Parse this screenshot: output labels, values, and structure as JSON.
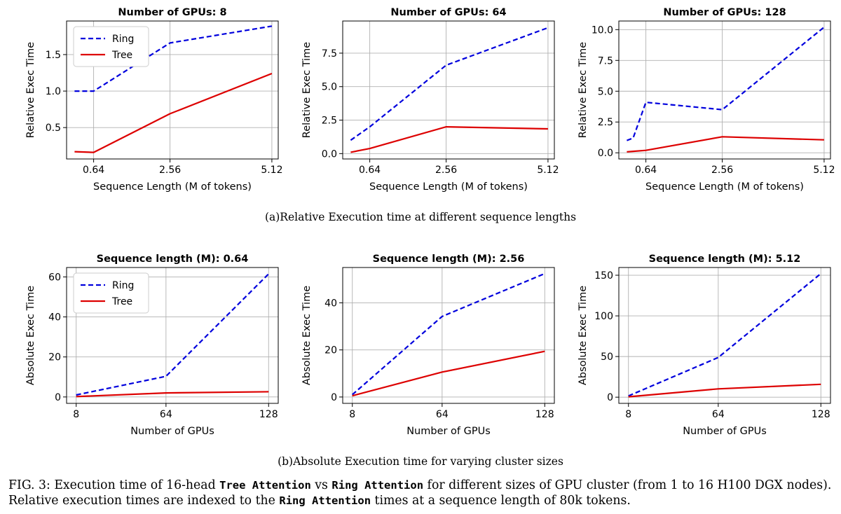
{
  "chart_data": [
    {
      "type": "line",
      "title": "Number of GPUs: 8",
      "xlabel": "Sequence Length (M of tokens)",
      "ylabel": "Relative Exec Time",
      "x_tick_labels": [
        "0.64",
        "2.56",
        "5.12"
      ],
      "y_tick_labels": [
        "0.5",
        "1.0",
        "1.5"
      ],
      "xlim": [
        -0.04,
        5.28
      ],
      "ylim": [
        0.07,
        1.96
      ],
      "grid": true,
      "legend": "upper-left",
      "series": [
        {
          "name": "Ring",
          "color": "#0000dd",
          "style": "dashed",
          "x": [
            0.16,
            0.64,
            2.56,
            5.12
          ],
          "y": [
            1.0,
            1.0,
            1.66,
            1.89
          ]
        },
        {
          "name": "Tree",
          "color": "#dd0000",
          "style": "solid",
          "x": [
            0.16,
            0.64,
            2.56,
            5.12
          ],
          "y": [
            0.17,
            0.16,
            0.69,
            1.24
          ]
        }
      ]
    },
    {
      "type": "line",
      "title": "Number of GPUs: 64",
      "xlabel": "Sequence Length (M of tokens)",
      "ylabel": "Relative Exec Time",
      "x_tick_labels": [
        "0.64",
        "2.56",
        "5.12"
      ],
      "y_tick_labels": [
        "0.0",
        "2.5",
        "5.0",
        "7.5"
      ],
      "xlim": [
        -0.04,
        5.28
      ],
      "ylim": [
        -0.4,
        9.9
      ],
      "grid": true,
      "series": [
        {
          "name": "Ring",
          "color": "#0000dd",
          "style": "dashed",
          "x": [
            0.16,
            0.64,
            2.56,
            5.12
          ],
          "y": [
            1.0,
            2.0,
            6.6,
            9.4
          ]
        },
        {
          "name": "Tree",
          "color": "#dd0000",
          "style": "solid",
          "x": [
            0.16,
            0.64,
            2.56,
            5.12
          ],
          "y": [
            0.1,
            0.38,
            2.0,
            1.85
          ]
        }
      ]
    },
    {
      "type": "line",
      "title": "Number of GPUs: 128",
      "xlabel": "Sequence Length (M of tokens)",
      "ylabel": "Relative Exec Time",
      "x_tick_labels": [
        "0.64",
        "2.56",
        "5.12"
      ],
      "y_tick_labels": [
        "0.0",
        "2.5",
        "5.0",
        "7.5",
        "10.0"
      ],
      "xlim": [
        -0.04,
        5.28
      ],
      "ylim": [
        -0.5,
        10.7
      ],
      "grid": true,
      "series": [
        {
          "name": "Ring",
          "color": "#0000dd",
          "style": "dashed",
          "x": [
            0.16,
            0.32,
            0.64,
            2.56,
            5.12
          ],
          "y": [
            1.0,
            1.2,
            4.1,
            3.5,
            10.2
          ]
        },
        {
          "name": "Tree",
          "color": "#dd0000",
          "style": "solid",
          "x": [
            0.16,
            0.32,
            0.64,
            2.56,
            5.12
          ],
          "y": [
            0.08,
            0.12,
            0.2,
            1.3,
            1.05
          ]
        }
      ]
    },
    {
      "type": "line",
      "title": "Sequence length (M): 0.64",
      "xlabel": "Number of GPUs",
      "ylabel": "Absolute Exec Time",
      "x_tick_labels": [
        "8",
        "64",
        "128"
      ],
      "y_tick_labels": [
        "0",
        "20",
        "40",
        "60"
      ],
      "xlim": [
        2,
        134
      ],
      "ylim": [
        -3.2,
        64.7
      ],
      "grid": true,
      "legend": "upper-left",
      "series": [
        {
          "name": "Ring",
          "color": "#0000dd",
          "style": "dashed",
          "x": [
            8,
            64,
            128
          ],
          "y": [
            1.0,
            10.3,
            61.5
          ]
        },
        {
          "name": "Tree",
          "color": "#dd0000",
          "style": "solid",
          "x": [
            8,
            64,
            128
          ],
          "y": [
            0.2,
            2.0,
            2.6
          ]
        }
      ]
    },
    {
      "type": "line",
      "title": "Sequence length (M): 2.56",
      "xlabel": "Number of GPUs",
      "ylabel": "Absolute Exec Time",
      "x_tick_labels": [
        "8",
        "64",
        "128"
      ],
      "y_tick_labels": [
        "0",
        "20",
        "40"
      ],
      "xlim": [
        2,
        134
      ],
      "ylim": [
        -2.7,
        55.0
      ],
      "grid": true,
      "series": [
        {
          "name": "Ring",
          "color": "#0000dd",
          "style": "dashed",
          "x": [
            8,
            64,
            128
          ],
          "y": [
            1.0,
            34.2,
            52.4
          ]
        },
        {
          "name": "Tree",
          "color": "#dd0000",
          "style": "solid",
          "x": [
            8,
            64,
            128
          ],
          "y": [
            0.5,
            10.6,
            19.4
          ]
        }
      ]
    },
    {
      "type": "line",
      "title": "Sequence length (M): 5.12",
      "xlabel": "Number of GPUs",
      "ylabel": "Absolute Exec Time",
      "x_tick_labels": [
        "8",
        "64",
        "128"
      ],
      "y_tick_labels": [
        "0",
        "50",
        "100",
        "150"
      ],
      "xlim": [
        2,
        134
      ],
      "ylim": [
        -7.6,
        159.5
      ],
      "grid": true,
      "series": [
        {
          "name": "Ring",
          "color": "#0000dd",
          "style": "dashed",
          "x": [
            8,
            64,
            128
          ],
          "y": [
            1.5,
            48.8,
            152.0
          ]
        },
        {
          "name": "Tree",
          "color": "#dd0000",
          "style": "solid",
          "x": [
            8,
            64,
            128
          ],
          "y": [
            0.5,
            10.2,
            15.8
          ]
        }
      ]
    }
  ],
  "captions": {
    "a": "(a)Relative Execution time at different sequence lengths",
    "b": "(b)Absolute Execution time for varying cluster sizes"
  },
  "figure_caption": {
    "lead": "FIG. 3: ",
    "t1": "Execution time of 16-head ",
    "code1": "Tree Attention",
    "t2": " vs ",
    "code2": "Ring Attention",
    "t3": " for different sizes of GPU cluster (from 1 to 16 H100 DGX nodes). Relative execution times are indexed to the ",
    "code3": "Ring Attention",
    "t4": " times at a sequence length of 80k tokens."
  }
}
